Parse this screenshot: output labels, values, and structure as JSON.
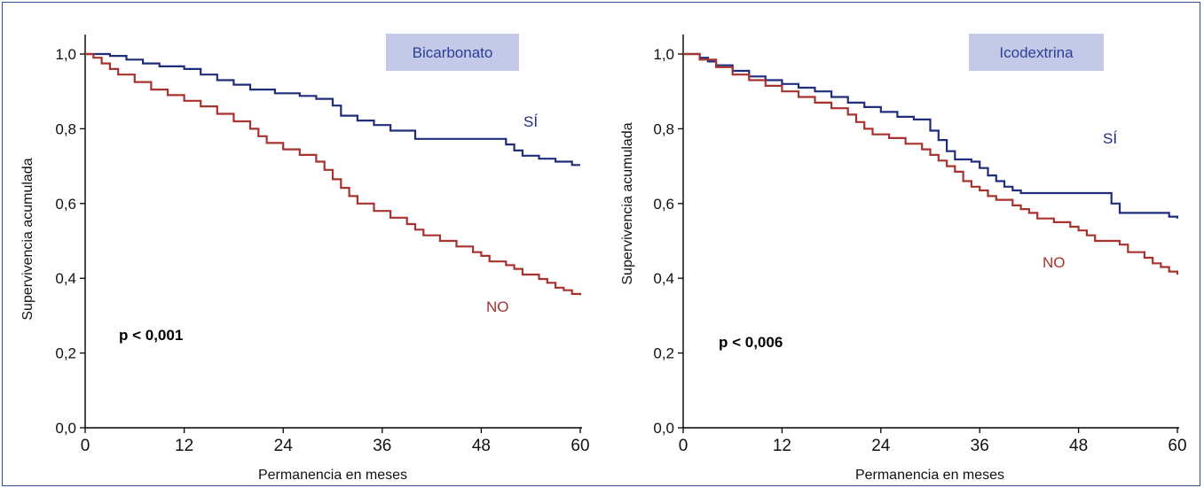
{
  "chart_data": [
    {
      "type": "line",
      "step": true,
      "title": "Bicarbonato",
      "xlabel": "Permanencia en meses",
      "ylabel": "Supervivencia acumulada",
      "xlim": [
        0,
        60
      ],
      "ylim": [
        0,
        1
      ],
      "x_ticks": [
        "0",
        "12",
        "24",
        "36",
        "48",
        "60"
      ],
      "y_ticks": [
        "0,0",
        "0,2",
        "0,4",
        "0,6",
        "0,8",
        "1,0"
      ],
      "annotation": "p < 0,001",
      "legend_position": "top-right",
      "grid": false,
      "series": [
        {
          "name": "SÍ",
          "color": "#1f2d7a",
          "points": [
            [
              0,
              1.0
            ],
            [
              3,
              0.995
            ],
            [
              5,
              0.985
            ],
            [
              7,
              0.975
            ],
            [
              9,
              0.967
            ],
            [
              12,
              0.96
            ],
            [
              14,
              0.945
            ],
            [
              16,
              0.93
            ],
            [
              18,
              0.918
            ],
            [
              20,
              0.905
            ],
            [
              23,
              0.895
            ],
            [
              26,
              0.888
            ],
            [
              28,
              0.88
            ],
            [
              30,
              0.862
            ],
            [
              31,
              0.835
            ],
            [
              33,
              0.822
            ],
            [
              35,
              0.81
            ],
            [
              37,
              0.795
            ],
            [
              40,
              0.773
            ],
            [
              44,
              0.773
            ],
            [
              46,
              0.773
            ],
            [
              50,
              0.773
            ],
            [
              51,
              0.758
            ],
            [
              52,
              0.742
            ],
            [
              53,
              0.728
            ],
            [
              55,
              0.72
            ],
            [
              57,
              0.712
            ],
            [
              59,
              0.703
            ],
            [
              60,
              0.703
            ]
          ]
        },
        {
          "name": "NO",
          "color": "#a8322d",
          "points": [
            [
              0,
              1.0
            ],
            [
              1,
              0.99
            ],
            [
              2,
              0.975
            ],
            [
              3,
              0.96
            ],
            [
              4,
              0.945
            ],
            [
              6,
              0.925
            ],
            [
              8,
              0.905
            ],
            [
              10,
              0.89
            ],
            [
              12,
              0.875
            ],
            [
              14,
              0.86
            ],
            [
              16,
              0.84
            ],
            [
              18,
              0.82
            ],
            [
              20,
              0.8
            ],
            [
              21,
              0.78
            ],
            [
              22,
              0.762
            ],
            [
              24,
              0.745
            ],
            [
              26,
              0.73
            ],
            [
              28,
              0.712
            ],
            [
              29,
              0.69
            ],
            [
              30,
              0.665
            ],
            [
              31,
              0.642
            ],
            [
              32,
              0.62
            ],
            [
              33,
              0.6
            ],
            [
              35,
              0.58
            ],
            [
              37,
              0.562
            ],
            [
              39,
              0.545
            ],
            [
              40,
              0.53
            ],
            [
              41,
              0.515
            ],
            [
              43,
              0.5
            ],
            [
              45,
              0.485
            ],
            [
              47,
              0.47
            ],
            [
              48,
              0.46
            ],
            [
              49,
              0.445
            ],
            [
              51,
              0.435
            ],
            [
              52,
              0.425
            ],
            [
              53,
              0.41
            ],
            [
              55,
              0.398
            ],
            [
              56,
              0.388
            ],
            [
              57,
              0.375
            ],
            [
              58,
              0.368
            ],
            [
              59,
              0.358
            ],
            [
              60,
              0.355
            ]
          ]
        }
      ]
    },
    {
      "type": "line",
      "step": true,
      "title": "Icodextrina",
      "xlabel": "Permanencia en meses",
      "ylabel": "Supervivencia acumulada",
      "xlim": [
        0,
        60
      ],
      "ylim": [
        0,
        1
      ],
      "x_ticks": [
        "0",
        "12",
        "24",
        "36",
        "48",
        "60"
      ],
      "y_ticks": [
        "0,0",
        "0,2",
        "0,4",
        "0,6",
        "0,8",
        "1,0"
      ],
      "annotation": "p < 0,006",
      "legend_position": "top-right",
      "grid": false,
      "series": [
        {
          "name": "SÍ",
          "color": "#1f2d7a",
          "points": [
            [
              0,
              1.0
            ],
            [
              2,
              0.99
            ],
            [
              3,
              0.98
            ],
            [
              4,
              0.97
            ],
            [
              6,
              0.955
            ],
            [
              8,
              0.94
            ],
            [
              10,
              0.93
            ],
            [
              12,
              0.92
            ],
            [
              14,
              0.91
            ],
            [
              16,
              0.9
            ],
            [
              18,
              0.885
            ],
            [
              20,
              0.87
            ],
            [
              22,
              0.858
            ],
            [
              24,
              0.845
            ],
            [
              26,
              0.832
            ],
            [
              28,
              0.825
            ],
            [
              30,
              0.795
            ],
            [
              31,
              0.77
            ],
            [
              32,
              0.74
            ],
            [
              33,
              0.718
            ],
            [
              35,
              0.712
            ],
            [
              36,
              0.695
            ],
            [
              37,
              0.675
            ],
            [
              38,
              0.66
            ],
            [
              39,
              0.645
            ],
            [
              40,
              0.635
            ],
            [
              41,
              0.628
            ],
            [
              44,
              0.628
            ],
            [
              47,
              0.628
            ],
            [
              51,
              0.628
            ],
            [
              52,
              0.6
            ],
            [
              53,
              0.575
            ],
            [
              55,
              0.575
            ],
            [
              57,
              0.575
            ],
            [
              59,
              0.565
            ],
            [
              60,
              0.56
            ]
          ]
        },
        {
          "name": "NO",
          "color": "#a8322d",
          "points": [
            [
              0,
              1.0
            ],
            [
              2,
              0.985
            ],
            [
              4,
              0.965
            ],
            [
              6,
              0.945
            ],
            [
              8,
              0.93
            ],
            [
              10,
              0.915
            ],
            [
              12,
              0.9
            ],
            [
              14,
              0.885
            ],
            [
              16,
              0.87
            ],
            [
              18,
              0.855
            ],
            [
              20,
              0.838
            ],
            [
              21,
              0.818
            ],
            [
              22,
              0.8
            ],
            [
              23,
              0.785
            ],
            [
              25,
              0.775
            ],
            [
              27,
              0.76
            ],
            [
              29,
              0.745
            ],
            [
              30,
              0.73
            ],
            [
              31,
              0.715
            ],
            [
              32,
              0.7
            ],
            [
              33,
              0.685
            ],
            [
              34,
              0.66
            ],
            [
              35,
              0.645
            ],
            [
              36,
              0.635
            ],
            [
              37,
              0.62
            ],
            [
              38,
              0.61
            ],
            [
              40,
              0.595
            ],
            [
              41,
              0.585
            ],
            [
              42,
              0.575
            ],
            [
              43,
              0.56
            ],
            [
              45,
              0.55
            ],
            [
              47,
              0.538
            ],
            [
              48,
              0.528
            ],
            [
              49,
              0.515
            ],
            [
              50,
              0.5
            ],
            [
              52,
              0.5
            ],
            [
              53,
              0.49
            ],
            [
              54,
              0.47
            ],
            [
              56,
              0.455
            ],
            [
              57,
              0.44
            ],
            [
              58,
              0.43
            ],
            [
              59,
              0.418
            ],
            [
              60,
              0.41
            ]
          ]
        }
      ]
    }
  ]
}
